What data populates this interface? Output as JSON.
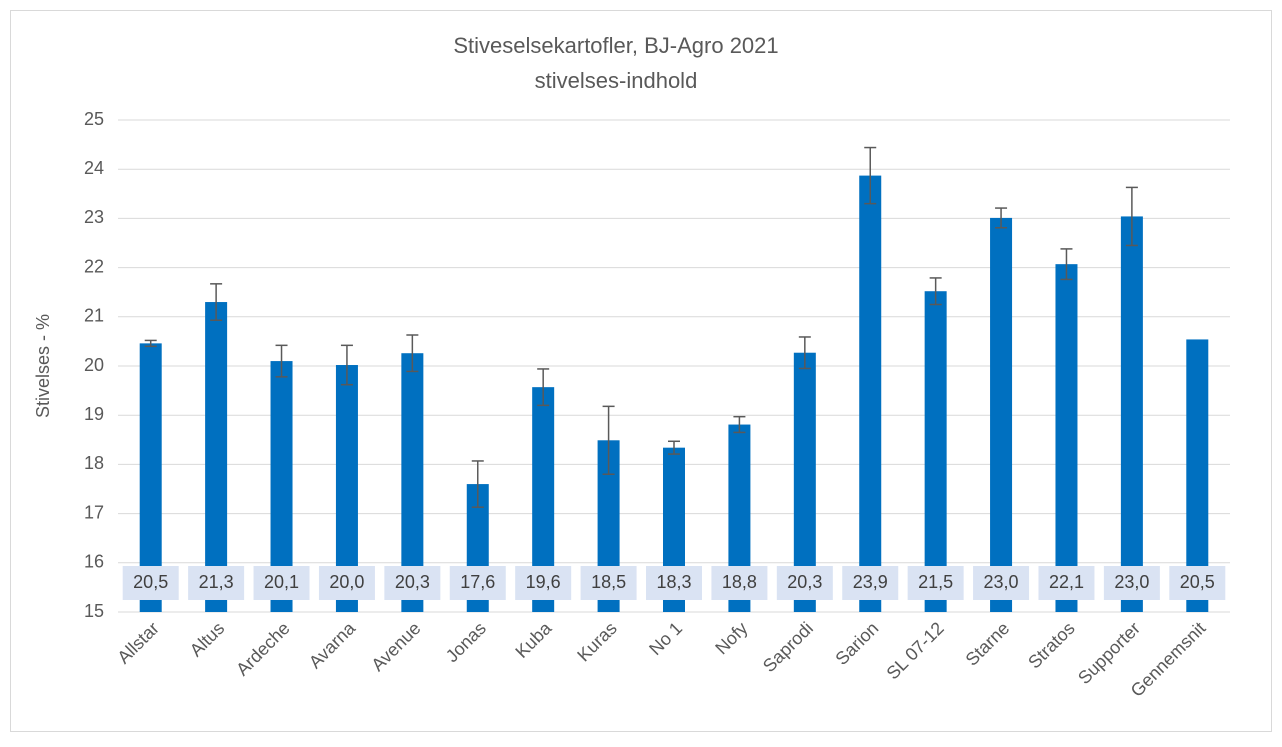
{
  "chart_data": {
    "type": "bar",
    "title": "Stiveselsekartofler, BJ-Agro 2021",
    "subtitle": "stivelses-indhold",
    "y_label": "Stivelses - %",
    "categories": [
      "Allstar",
      "Altus",
      "Ardeche",
      "Avarna",
      "Avenue",
      "Jonas",
      "Kuba",
      "Kuras",
      "No 1",
      "Nofy",
      "Saprodi",
      "Sarion",
      "SL 07-12",
      "Starne",
      "Stratos",
      "Supporter",
      "Gennemsnit"
    ],
    "values": [
      20.46,
      21.3,
      20.1,
      20.02,
      20.26,
      17.6,
      19.57,
      18.49,
      18.34,
      18.81,
      20.27,
      23.87,
      21.52,
      23.01,
      22.07,
      23.04,
      20.54
    ],
    "value_labels": [
      "20,5",
      "21,3",
      "20,1",
      "20,0",
      "20,3",
      "17,6",
      "19,6",
      "18,5",
      "18,3",
      "18,8",
      "20,3",
      "23,9",
      "21,5",
      "23,0",
      "22,1",
      "23,0",
      "20,5"
    ],
    "errors": [
      0.06,
      0.37,
      0.32,
      0.4,
      0.37,
      0.47,
      0.37,
      0.69,
      0.13,
      0.16,
      0.32,
      0.57,
      0.27,
      0.2,
      0.31,
      0.59,
      null
    ],
    "color": "#0070c0",
    "error_color": "#595959",
    "ylim": [
      15,
      25
    ],
    "yticks": [
      15,
      16,
      17,
      18,
      19,
      20,
      21,
      22,
      23,
      24,
      25
    ],
    "grid": true
  }
}
